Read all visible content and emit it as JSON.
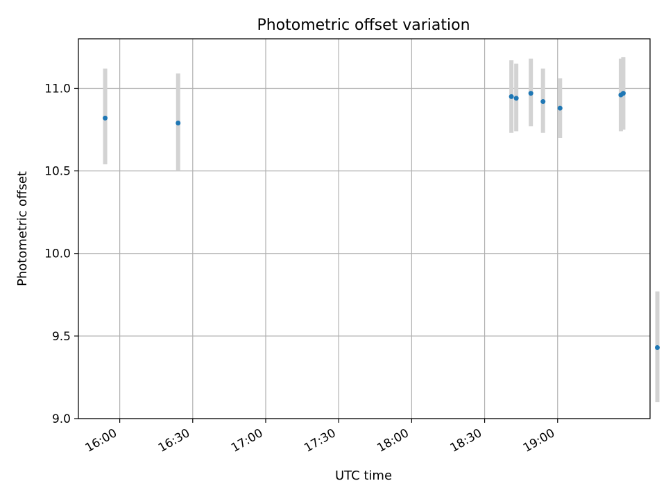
{
  "chart_data": {
    "type": "scatter",
    "title": "Photometric offset variation",
    "xlabel": "UTC time",
    "ylabel": "Photometric offset",
    "x_tick_labels": [
      "16:00",
      "16:30",
      "17:00",
      "17:30",
      "18:00",
      "18:30",
      "19:00"
    ],
    "x_ticks": [
      "16:00",
      "16:30",
      "17:00",
      "17:30",
      "18:00",
      "18:30",
      "19:00"
    ],
    "y_ticks": [
      9.0,
      9.5,
      10.0,
      10.5,
      11.0
    ],
    "y_tick_labels": [
      "9.0",
      "9.5",
      "10.0",
      "10.5",
      "11.0"
    ],
    "xlim": [
      "15:43",
      "19:38"
    ],
    "ylim": [
      9.0,
      11.3
    ],
    "grid": true,
    "marker_color": "#1f77b4",
    "errorbar_color": "#d3d3d3",
    "points": [
      {
        "x": "15:54",
        "y": 10.82,
        "err_low": 10.54,
        "err_high": 11.12
      },
      {
        "x": "16:24",
        "y": 10.79,
        "err_low": 10.5,
        "err_high": 11.09
      },
      {
        "x": "18:41",
        "y": 10.95,
        "err_low": 10.73,
        "err_high": 11.17
      },
      {
        "x": "18:43",
        "y": 10.94,
        "err_low": 10.74,
        "err_high": 11.15
      },
      {
        "x": "18:49",
        "y": 10.97,
        "err_low": 10.77,
        "err_high": 11.18
      },
      {
        "x": "18:54",
        "y": 10.92,
        "err_low": 10.73,
        "err_high": 11.12
      },
      {
        "x": "19:01",
        "y": 10.88,
        "err_low": 10.7,
        "err_high": 11.06
      },
      {
        "x": "19:26",
        "y": 10.96,
        "err_low": 10.74,
        "err_high": 11.18
      },
      {
        "x": "19:27",
        "y": 10.97,
        "err_low": 10.75,
        "err_high": 11.19
      },
      {
        "x": "19:41",
        "y": 9.43,
        "err_low": 9.1,
        "err_high": 9.77
      }
    ]
  }
}
